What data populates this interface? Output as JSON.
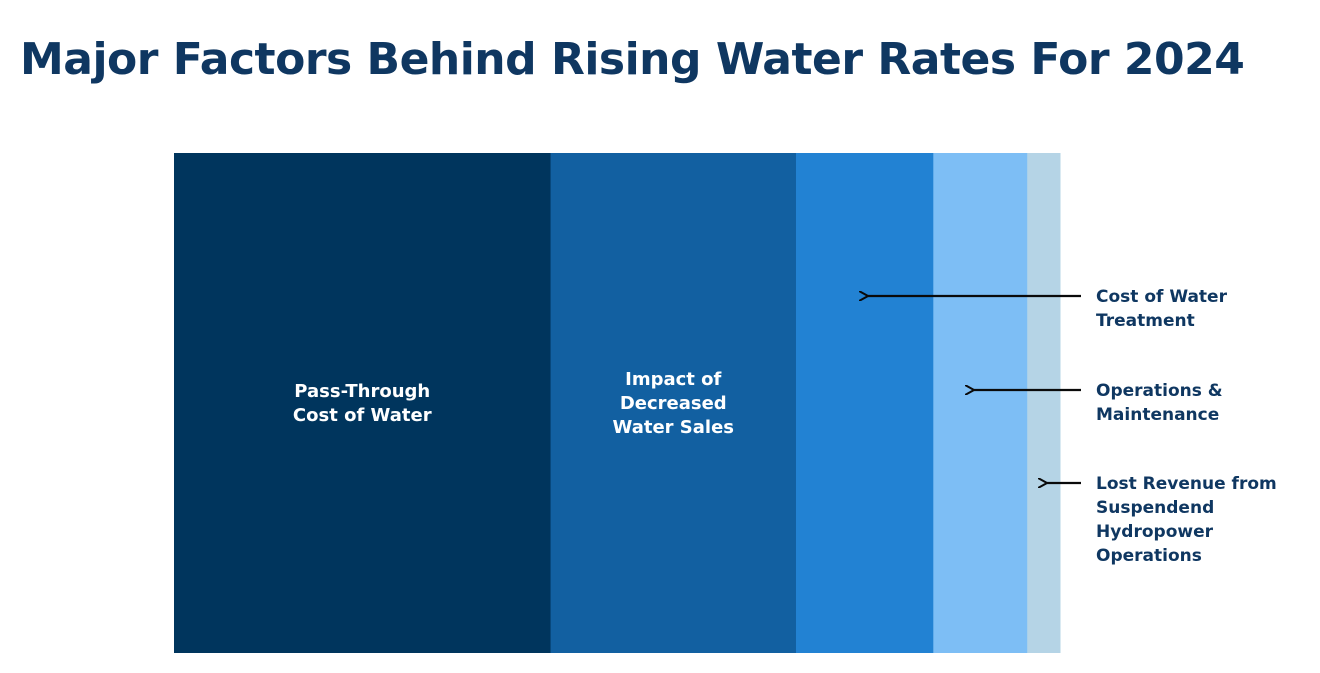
{
  "title": "Major Factors Behind Rising Water Rates For 2024",
  "colors": {
    "title": "#0f3761",
    "segment_label": "#ffffff",
    "annotation_text": "#0f3761",
    "arrow": "#0a0a0a",
    "background": "#ffffff"
  },
  "chart_data": {
    "type": "bar",
    "subtype": "100% stacked single bar",
    "unit": "share of rate increase (%)",
    "segments": [
      {
        "name": "Pass-Through Cost of Water",
        "value": 42.5,
        "color": "#00355d",
        "label_lines": [
          "Pass-Through",
          "Cost of Water"
        ],
        "label_position": "inside"
      },
      {
        "name": "Impact of Decreased Water Sales",
        "value": 27.7,
        "color": "#1260a1",
        "label_lines": [
          "Impact of",
          "Decreased",
          "Water Sales"
        ],
        "label_position": "inside"
      },
      {
        "name": "Cost of Water Treatment",
        "value": 15.5,
        "color": "#2282d3",
        "label_lines": [
          "Cost of Water",
          "Treatment"
        ],
        "label_position": "callout"
      },
      {
        "name": "Operations & Maintenance",
        "value": 10.6,
        "color": "#7dbef5",
        "label_lines": [
          "Operations &",
          "Maintenance"
        ],
        "label_position": "callout"
      },
      {
        "name": "Lost Revenue from Suspendend Hydropower Operations",
        "value": 3.7,
        "color": "#b5d4e6",
        "label_lines": [
          "Lost Revenue from",
          "Suspendend",
          "Hydropower",
          "Operations"
        ],
        "label_position": "callout"
      }
    ],
    "axes_visible": false,
    "grid": false,
    "legend": "none (callout labels on right)"
  }
}
